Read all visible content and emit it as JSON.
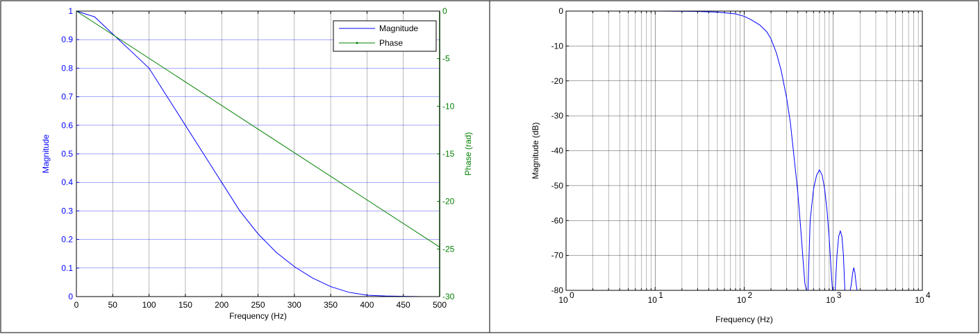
{
  "colors": {
    "magnitude": "#0000ff",
    "phase": "#008000",
    "grid": "#000000",
    "frame": "#000000"
  },
  "chart_data": [
    {
      "type": "line",
      "xlabel": "Frequency (Hz)",
      "ylabel": "Magnitude",
      "y2label": "Phase (rad)",
      "xlim": [
        0,
        500
      ],
      "ylim": [
        0,
        1
      ],
      "y2lim": [
        -30,
        0
      ],
      "xticks": [
        "0",
        "50",
        "100",
        "150",
        "200",
        "250",
        "300",
        "350",
        "400",
        "450",
        "500"
      ],
      "yticks": [
        "0",
        "0.1",
        "0.2",
        "0.3",
        "0.4",
        "0.5",
        "0.6",
        "0.7",
        "0.8",
        "0.9",
        "1"
      ],
      "y2ticks": [
        "0",
        "-5",
        "-10",
        "-15",
        "-20",
        "-25",
        "-30"
      ],
      "grid": true,
      "legend": {
        "position": "top-right",
        "entries": [
          "Magnitude",
          "Phase"
        ]
      },
      "series": [
        {
          "name": "Magnitude",
          "axis": "left",
          "color": "#0000ff",
          "x": [
            0,
            25,
            50,
            75,
            100,
            125,
            150,
            175,
            200,
            225,
            250,
            275,
            300,
            325,
            350,
            375,
            400,
            425,
            450,
            475,
            500
          ],
          "values": [
            1.0,
            0.98,
            0.92,
            0.86,
            0.8,
            0.7,
            0.6,
            0.5,
            0.4,
            0.3,
            0.22,
            0.155,
            0.105,
            0.065,
            0.035,
            0.015,
            0.005,
            0.002,
            0.001,
            0.0,
            0.0
          ]
        },
        {
          "name": "Phase",
          "axis": "right",
          "color": "#008000",
          "x": [
            0,
            500
          ],
          "values": [
            0,
            -24.8
          ]
        }
      ]
    },
    {
      "type": "line",
      "xlabel": "Frequency (Hz)",
      "ylabel": "Magnitude (dB)",
      "xscale": "log",
      "xlim": [
        1,
        10000
      ],
      "ylim": [
        -80,
        0
      ],
      "xtick_bases": [
        "10",
        "10",
        "10",
        "10",
        "10"
      ],
      "xtick_exponents": [
        "0",
        "1",
        "2",
        "3",
        "4"
      ],
      "yticks": [
        "0",
        "-10",
        "-20",
        "-30",
        "-40",
        "-50",
        "-60",
        "-70",
        "-80"
      ],
      "grid": true,
      "series": [
        {
          "color": "#0000ff",
          "x": [
            1,
            10,
            30,
            50,
            80,
            100,
            120,
            150,
            180,
            200,
            230,
            260,
            300,
            330,
            360,
            400,
            430,
            460,
            480,
            500,
            520,
            550,
            600,
            650,
            700,
            750,
            800,
            850,
            900,
            950,
            980,
            1000,
            1050,
            1100,
            1150,
            1200,
            1250,
            1300,
            1350,
            1400,
            1450,
            1500,
            1550,
            1600,
            1650,
            1700,
            1750,
            1800,
            1850,
            1900,
            1950,
            2000
          ],
          "values": [
            0,
            0,
            -0.1,
            -0.3,
            -0.8,
            -1.5,
            -2.5,
            -4,
            -6,
            -8,
            -12,
            -17,
            -25,
            -32,
            -41,
            -52,
            -62,
            -72,
            -78,
            -80,
            -80,
            -60,
            -51,
            -47,
            -45.5,
            -47,
            -51,
            -57,
            -65,
            -75,
            -80,
            -80,
            -80,
            -70,
            -64.5,
            -63,
            -64.5,
            -70,
            -80,
            -80,
            -80,
            -80,
            -80,
            -78,
            -75,
            -73.5,
            -75,
            -78,
            -80,
            -80,
            -80,
            -80
          ]
        }
      ]
    }
  ]
}
